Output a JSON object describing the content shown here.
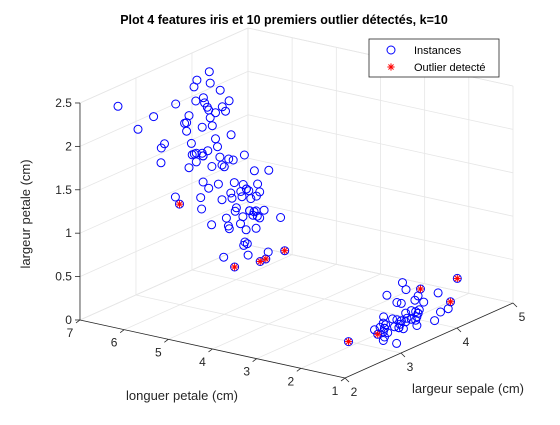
{
  "chart_data": {
    "type": "scatter3d",
    "title": "Plot 4 features iris et 10 premiers outlier détectés, k=10",
    "xlabel": "largeur sepale (cm)",
    "ylabel": "longuer petale (cm)",
    "zlabel": "largeur petale (cm)",
    "xlim": [
      2,
      5
    ],
    "ylim": [
      1,
      7
    ],
    "zlim": [
      0,
      2.5
    ],
    "xticks": [
      "2",
      "3",
      "4",
      "5"
    ],
    "yticks": [
      "1",
      "2",
      "3",
      "4",
      "5",
      "6",
      "7"
    ],
    "zticks": [
      "0",
      "0.5",
      "1",
      "1.5",
      "2",
      "2.5"
    ],
    "grid": true,
    "legend_position": "top-right",
    "colors": {
      "instances": "#0000ff",
      "outliers": "#ff0000",
      "axis": "#262626",
      "grid": "#e6e6e6"
    },
    "series": [
      {
        "name": "Instances",
        "marker": "circle",
        "points": [
          [
            3.5,
            1.4,
            0.2
          ],
          [
            3.0,
            1.4,
            0.2
          ],
          [
            3.2,
            1.3,
            0.2
          ],
          [
            3.1,
            1.5,
            0.2
          ],
          [
            3.6,
            1.4,
            0.2
          ],
          [
            3.9,
            1.7,
            0.4
          ],
          [
            3.4,
            1.4,
            0.3
          ],
          [
            3.4,
            1.5,
            0.2
          ],
          [
            2.9,
            1.4,
            0.2
          ],
          [
            3.1,
            1.5,
            0.1
          ],
          [
            3.7,
            1.5,
            0.2
          ],
          [
            3.4,
            1.6,
            0.2
          ],
          [
            3.0,
            1.4,
            0.1
          ],
          [
            3.0,
            1.1,
            0.1
          ],
          [
            4.0,
            1.2,
            0.2
          ],
          [
            4.4,
            1.5,
            0.4
          ],
          [
            3.9,
            1.3,
            0.4
          ],
          [
            3.5,
            1.4,
            0.3
          ],
          [
            3.8,
            1.7,
            0.3
          ],
          [
            3.8,
            1.5,
            0.3
          ],
          [
            3.4,
            1.7,
            0.2
          ],
          [
            3.7,
            1.5,
            0.4
          ],
          [
            3.6,
            1.0,
            0.2
          ],
          [
            3.3,
            1.7,
            0.5
          ],
          [
            3.4,
            1.9,
            0.2
          ],
          [
            3.0,
            1.6,
            0.2
          ],
          [
            3.4,
            1.6,
            0.4
          ],
          [
            3.5,
            1.5,
            0.2
          ],
          [
            3.4,
            1.4,
            0.2
          ],
          [
            3.2,
            1.6,
            0.2
          ],
          [
            3.1,
            1.6,
            0.2
          ],
          [
            3.4,
            1.5,
            0.4
          ],
          [
            4.1,
            1.5,
            0.1
          ],
          [
            4.2,
            1.4,
            0.2
          ],
          [
            3.1,
            1.5,
            0.2
          ],
          [
            3.2,
            1.2,
            0.2
          ],
          [
            3.5,
            1.3,
            0.2
          ],
          [
            3.6,
            1.4,
            0.1
          ],
          [
            3.0,
            1.3,
            0.2
          ],
          [
            3.4,
            1.5,
            0.2
          ],
          [
            3.5,
            1.3,
            0.3
          ],
          [
            2.3,
            1.3,
            0.3
          ],
          [
            3.2,
            1.3,
            0.2
          ],
          [
            3.5,
            1.6,
            0.6
          ],
          [
            3.8,
            1.9,
            0.4
          ],
          [
            3.0,
            1.4,
            0.3
          ],
          [
            3.8,
            1.6,
            0.2
          ],
          [
            3.2,
            1.4,
            0.2
          ],
          [
            3.7,
            1.5,
            0.2
          ],
          [
            3.3,
            1.4,
            0.2
          ],
          [
            3.2,
            4.7,
            1.4
          ],
          [
            3.2,
            4.5,
            1.5
          ],
          [
            3.1,
            4.9,
            1.5
          ],
          [
            2.3,
            4.0,
            1.3
          ],
          [
            2.8,
            4.6,
            1.5
          ],
          [
            2.8,
            4.5,
            1.3
          ],
          [
            3.3,
            4.7,
            1.6
          ],
          [
            2.4,
            3.3,
            1.0
          ],
          [
            2.9,
            4.6,
            1.3
          ],
          [
            2.7,
            3.9,
            1.4
          ],
          [
            2.0,
            3.5,
            1.0
          ],
          [
            3.0,
            4.2,
            1.5
          ],
          [
            2.2,
            4.0,
            1.0
          ],
          [
            2.9,
            4.7,
            1.4
          ],
          [
            2.9,
            3.6,
            1.3
          ],
          [
            3.1,
            4.4,
            1.4
          ],
          [
            3.0,
            4.5,
            1.5
          ],
          [
            2.7,
            4.1,
            1.0
          ],
          [
            2.2,
            4.5,
            1.5
          ],
          [
            2.5,
            3.9,
            1.1
          ],
          [
            3.2,
            4.8,
            1.8
          ],
          [
            2.8,
            4.0,
            1.3
          ],
          [
            2.5,
            4.9,
            1.5
          ],
          [
            2.8,
            4.7,
            1.2
          ],
          [
            2.9,
            4.3,
            1.3
          ],
          [
            3.0,
            4.4,
            1.4
          ],
          [
            2.8,
            4.8,
            1.4
          ],
          [
            3.0,
            5.0,
            1.7
          ],
          [
            2.9,
            4.5,
            1.5
          ],
          [
            2.6,
            3.5,
            1.0
          ],
          [
            2.4,
            3.8,
            1.1
          ],
          [
            2.4,
            3.7,
            1.0
          ],
          [
            2.7,
            3.9,
            1.2
          ],
          [
            2.7,
            5.1,
            1.6
          ],
          [
            3.0,
            4.5,
            1.5
          ],
          [
            3.4,
            4.5,
            1.6
          ],
          [
            3.1,
            4.7,
            1.5
          ],
          [
            2.3,
            4.4,
            1.3
          ],
          [
            3.0,
            4.1,
            1.3
          ],
          [
            2.5,
            4.0,
            1.3
          ],
          [
            2.6,
            4.4,
            1.2
          ],
          [
            3.0,
            4.6,
            1.4
          ],
          [
            2.6,
            4.0,
            1.2
          ],
          [
            2.3,
            3.3,
            1.0
          ],
          [
            2.7,
            4.2,
            1.3
          ],
          [
            3.0,
            4.2,
            1.2
          ],
          [
            2.9,
            4.2,
            1.3
          ],
          [
            2.9,
            4.3,
            1.3
          ],
          [
            2.5,
            3.0,
            1.1
          ],
          [
            2.8,
            4.1,
            1.3
          ],
          [
            3.3,
            6.0,
            2.5
          ],
          [
            2.7,
            5.1,
            1.9
          ],
          [
            3.0,
            5.9,
            2.1
          ],
          [
            2.9,
            5.6,
            1.8
          ],
          [
            3.0,
            5.8,
            2.2
          ],
          [
            3.0,
            6.6,
            2.1
          ],
          [
            2.5,
            4.5,
            1.7
          ],
          [
            2.9,
            6.3,
            1.8
          ],
          [
            2.5,
            5.8,
            1.8
          ],
          [
            3.6,
            6.1,
            2.5
          ],
          [
            3.2,
            5.1,
            2.0
          ],
          [
            2.7,
            5.3,
            1.9
          ],
          [
            3.0,
            5.5,
            2.1
          ],
          [
            2.5,
            5.0,
            2.0
          ],
          [
            2.8,
            5.1,
            2.4
          ],
          [
            3.2,
            5.3,
            2.3
          ],
          [
            3.0,
            5.5,
            1.8
          ],
          [
            3.8,
            6.7,
            2.2
          ],
          [
            2.6,
            6.9,
            2.3
          ],
          [
            2.2,
            5.0,
            1.5
          ],
          [
            3.2,
            5.7,
            2.3
          ],
          [
            2.8,
            4.9,
            2.0
          ],
          [
            2.8,
            6.7,
            2.0
          ],
          [
            2.7,
            4.9,
            1.8
          ],
          [
            3.3,
            5.7,
            2.1
          ],
          [
            3.2,
            6.0,
            1.8
          ],
          [
            2.8,
            4.8,
            1.8
          ],
          [
            3.0,
            4.9,
            1.8
          ],
          [
            2.8,
            5.6,
            2.1
          ],
          [
            3.0,
            5.8,
            1.6
          ],
          [
            2.8,
            6.1,
            1.9
          ],
          [
            3.8,
            6.4,
            2.0
          ],
          [
            2.8,
            5.6,
            2.2
          ],
          [
            2.8,
            5.1,
            1.5
          ],
          [
            2.6,
            5.6,
            1.4
          ],
          [
            3.0,
            6.1,
            2.3
          ],
          [
            3.4,
            5.6,
            2.4
          ],
          [
            3.1,
            5.5,
            1.8
          ],
          [
            3.0,
            4.8,
            1.8
          ],
          [
            3.1,
            5.4,
            2.1
          ],
          [
            3.1,
            5.6,
            2.4
          ],
          [
            3.1,
            5.1,
            2.3
          ],
          [
            2.7,
            5.1,
            1.9
          ],
          [
            3.2,
            5.9,
            2.3
          ],
          [
            3.3,
            5.7,
            2.5
          ],
          [
            3.0,
            5.2,
            2.3
          ],
          [
            2.5,
            5.0,
            1.9
          ],
          [
            3.0,
            5.2,
            2.0
          ],
          [
            3.4,
            5.4,
            2.3
          ],
          [
            3.0,
            5.1,
            1.8
          ]
        ]
      },
      {
        "name": "Outlier detecté",
        "marker": "asterisk",
        "points": [
          [
            2.3,
            1.3,
            0.3
          ],
          [
            4.4,
            1.5,
            0.4
          ],
          [
            4.2,
            1.4,
            0.2
          ],
          [
            3.9,
            1.7,
            0.4
          ],
          [
            2.9,
            1.4,
            0.2
          ],
          [
            2.0,
            3.5,
            1.0
          ],
          [
            2.4,
            3.3,
            1.0
          ],
          [
            2.3,
            3.3,
            1.0
          ],
          [
            2.5,
            3.0,
            1.1
          ],
          [
            2.2,
            5.0,
            1.5
          ]
        ]
      }
    ]
  }
}
